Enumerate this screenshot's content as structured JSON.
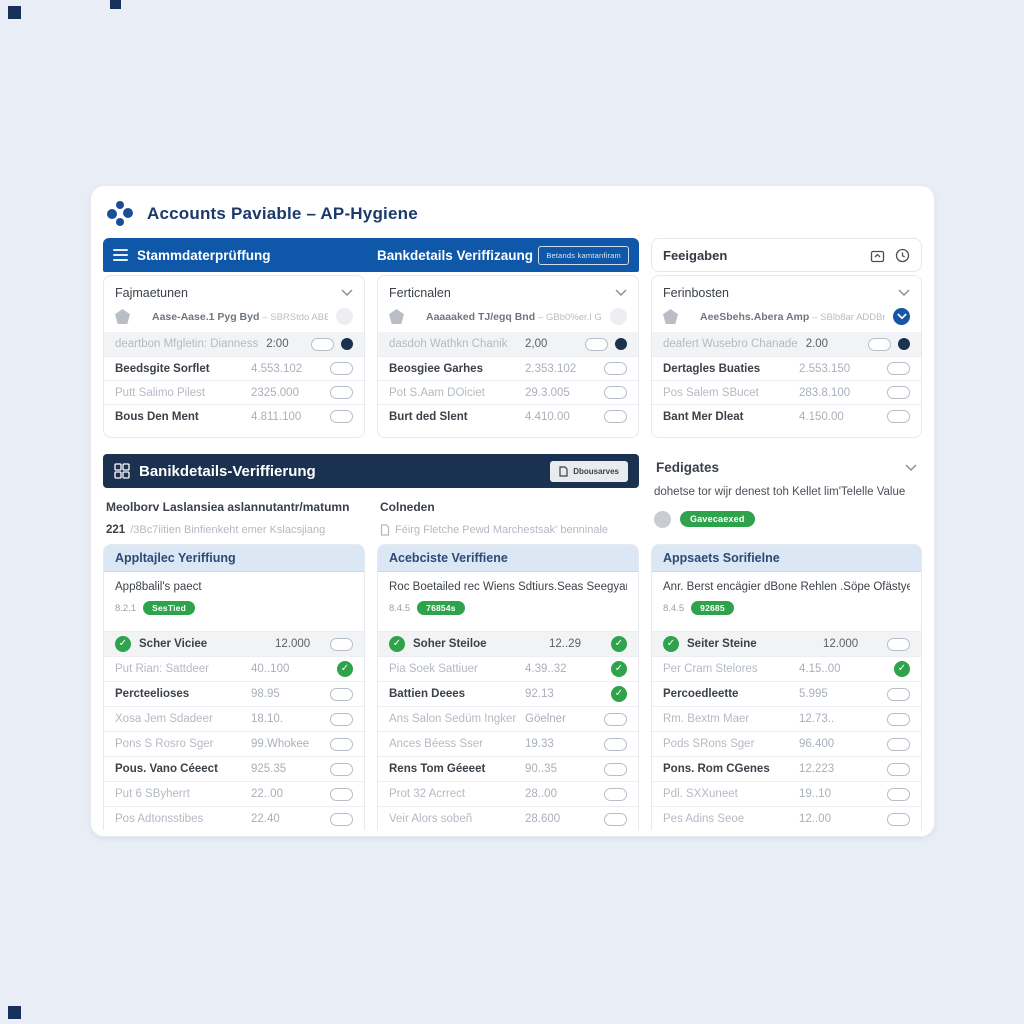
{
  "app": {
    "title": "Accounts Paviable – AP-Hygiene"
  },
  "colors": {
    "top_bar": "#0f57a8",
    "navy_band": "#1a3150",
    "accent_green": "#2fa34c",
    "subheader_bg": "#dce7f5",
    "logo_blue": "#1b4f94"
  },
  "top_bar": {
    "left_title": "Stammdaterprüffung",
    "right_title": "Bankdetails Veriffizaung",
    "button_label": "Betands kamtanfiram"
  },
  "approvals_card": {
    "title": "Feeigaben"
  },
  "vendor_panels": [
    {
      "dropdown_label": "Fajmaetunen",
      "vendor_name": "Aase-Aase.1 Pyg Byd",
      "vendor_sub": "– SBRStdo ABBbr Gr",
      "badge": "circle",
      "rows": [
        {
          "label": "deartbon Mfgletin: Dianness",
          "value": "2:00",
          "control": "toggle-dot",
          "highlight": true,
          "muted": true
        },
        {
          "label": "Beedsgite Sorflet",
          "value": "4.553.102",
          "control": "toggle"
        },
        {
          "label": "Putt Salimo Pilest",
          "value": "2325.000",
          "control": "toggle",
          "muted": true
        },
        {
          "label": "Bous Den Ment",
          "value": "4.811.100",
          "control": "toggle"
        }
      ]
    },
    {
      "dropdown_label": "Ferticnalen",
      "vendor_name": "Aaaaaked TJ/egq Bnd",
      "vendor_sub": "– GBb0%er.I Gbbr Cr",
      "badge": "circle",
      "rows": [
        {
          "label": "dasdoh Wathkn Chanik",
          "value": "2,00",
          "control": "toggle-dot",
          "highlight": true,
          "muted": true
        },
        {
          "label": "Beosgiee Garhes",
          "value": "2.353.102",
          "control": "toggle"
        },
        {
          "label": "Pot S.Aam DOiciet",
          "value": "29.3.005",
          "control": "toggle",
          "muted": true
        },
        {
          "label": "Burt ded Slent",
          "value": "4.410.00",
          "control": "toggle"
        }
      ]
    },
    {
      "dropdown_label": "Ferinbosten",
      "vendor_name": "AeeSbehs.Abera Amp",
      "vendor_sub": "– SBlb8ar ADDBr'Tr",
      "badge": "chevron-blue",
      "rows": [
        {
          "label": "deafert Wusebro Chanade",
          "value": "2.00",
          "control": "toggle-dot",
          "highlight": true,
          "muted": true
        },
        {
          "label": "Dertagles Buaties",
          "value": "2.553.150",
          "control": "toggle"
        },
        {
          "label": "Pos Salem SBucet",
          "value": "283.8.100",
          "control": "toggle",
          "muted": true
        },
        {
          "label": "Bant Mer Dleat",
          "value": "4.150.00",
          "control": "toggle"
        }
      ]
    }
  ],
  "bank_band": {
    "title": "Banikdetails-Veriffierung",
    "button_label": "Dbousarves"
  },
  "info_left": {
    "title": "Meolborv Laslansiea aslannutantr/matumn",
    "stat": "221",
    "rest": "/3Bc7iitien   Binfienkeht emer   Kslacsjiang"
  },
  "info_middle": {
    "title": "Colneden",
    "line": "Féirg Fletche Pewd Marchestsak' benninale"
  },
  "approvals_section": {
    "title": "Fedigates",
    "description": "dohetse tor wijr denest toh Kellet lim'Telelle Value",
    "badge": "Gavecaexed"
  },
  "verification_columns": [
    {
      "header": "Appltajlec Yeriffiung",
      "subtitle": "App8balil's paect",
      "version": "8.2.1",
      "badge": "SesTied",
      "rows": [
        {
          "lead": "check",
          "label": "Scher Viciee",
          "value": "12.000",
          "control": "toggle",
          "highlight": true
        },
        {
          "label": "Put Rian: Sattdeer",
          "value": "40..100",
          "control": "check",
          "muted": true
        },
        {
          "label": "Percteelioses",
          "value": "98.95",
          "control": "toggle"
        },
        {
          "label": "Xosa Jem Sdadeer",
          "value": "18.10.",
          "control": "toggle",
          "muted": true
        },
        {
          "label": "Pons S Rosro Sger",
          "value": "99.Whokee",
          "control": "toggle",
          "muted": true
        },
        {
          "label": "Pous. Vano Céeect",
          "value": "925.35",
          "control": "toggle"
        },
        {
          "label": "Put 6 SByherrt",
          "value": "22..00",
          "control": "toggle",
          "muted": true
        },
        {
          "label": "Pos Adtonsstibes",
          "value": "22.40",
          "control": "toggle",
          "muted": true
        }
      ]
    },
    {
      "header": "Acebciste Veriffiene",
      "subtitle": "Roc Boetailed rec Wiens Sdtiurs.Seas Seegyan",
      "version": "8.4.5",
      "badge": "76854s",
      "rows": [
        {
          "lead": "check",
          "label": "Soher Steiloe",
          "value": "12..29",
          "control": "check",
          "highlight": true
        },
        {
          "label": "Pia Soek Sattiuer",
          "value": "4.39..32",
          "control": "check",
          "muted": true
        },
        {
          "label": "Battien Deees",
          "value": "92.13",
          "control": "check"
        },
        {
          "label": "Ans Salon Sedüm Ingker",
          "value": "Göelner",
          "control": "toggle",
          "muted": true
        },
        {
          "label": "Ances Béess Sser",
          "value": "19.33",
          "control": "toggle",
          "muted": true
        },
        {
          "label": "Rens Tom Géeeet",
          "value": "90..35",
          "control": "toggle"
        },
        {
          "label": "Prot 32 Acrrect",
          "value": "28..00",
          "control": "toggle",
          "muted": true
        },
        {
          "label": "Veir Alors sobeñ",
          "value": "28.600",
          "control": "toggle",
          "muted": true
        }
      ]
    },
    {
      "header": "Appsaets Sorifielne",
      "subtitle": "Anr. Berst encägier dBone Rehlen .Söpe Ofästyell",
      "version": "8.4.5",
      "badge": "92685",
      "rows": [
        {
          "lead": "check",
          "label": "Seiter Steine",
          "value": "12.000",
          "control": "toggle",
          "highlight": true
        },
        {
          "label": "Per Cram Stelores",
          "value": "4.15..00",
          "control": "check",
          "muted": true
        },
        {
          "label": "Percoedleette",
          "value": "5.995",
          "control": "toggle"
        },
        {
          "label": "Rm. Bextm Maer",
          "value": "12.73..",
          "control": "toggle",
          "muted": true
        },
        {
          "label": "Pods SRons Sger",
          "value": "96.400",
          "control": "toggle",
          "muted": true
        },
        {
          "label": "Pons. Rom CGenes",
          "value": "12.223",
          "control": "toggle"
        },
        {
          "label": "Pdl. SXXuneet",
          "value": "19..10",
          "control": "toggle",
          "muted": true
        },
        {
          "label": "Pes Adins Seoe",
          "value": "12..00",
          "control": "toggle",
          "muted": true
        }
      ]
    }
  ]
}
